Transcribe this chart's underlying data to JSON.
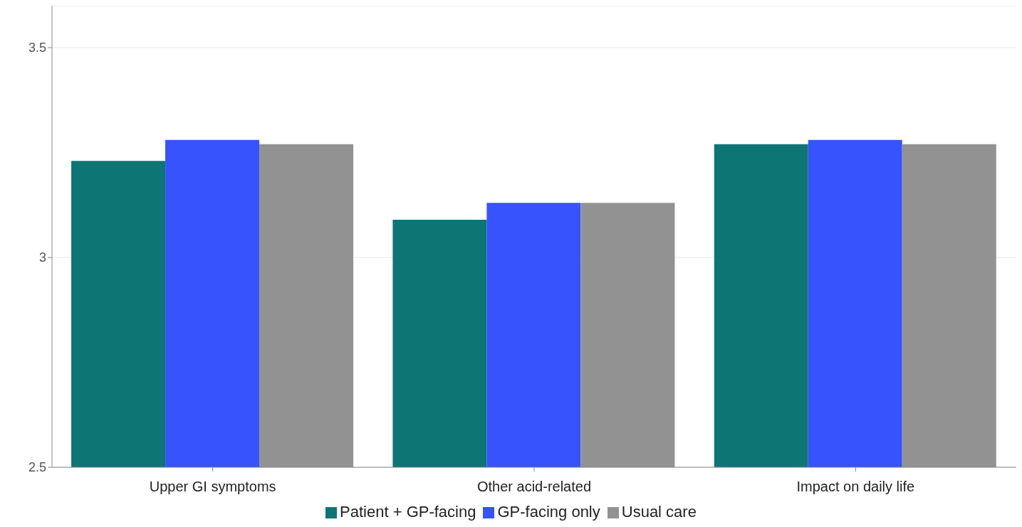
{
  "chart_data": {
    "type": "bar",
    "categories": [
      "Upper GI symptoms",
      "Other acid-related",
      "Impact on daily life"
    ],
    "series": [
      {
        "name": "Patient + GP-facing",
        "color": "#0e7575",
        "values": [
          3.23,
          3.09,
          3.27
        ]
      },
      {
        "name": "GP-facing only",
        "color": "#3653fe",
        "values": [
          3.28,
          3.13,
          3.28
        ]
      },
      {
        "name": "Usual care",
        "color": "#929292",
        "values": [
          3.27,
          3.13,
          3.27
        ]
      }
    ],
    "ylim": [
      2.5,
      3.6
    ],
    "yticks": [
      2.5,
      3,
      3.5
    ],
    "grid": "y",
    "legend": "bottom"
  }
}
